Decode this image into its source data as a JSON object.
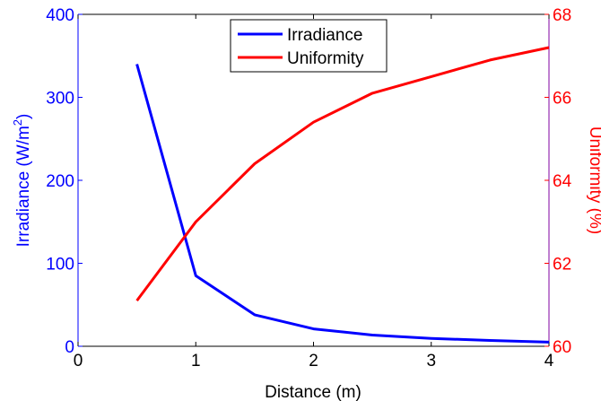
{
  "chart_data": {
    "type": "line",
    "title": "",
    "xlabel": "Distance (m)",
    "ylabel_left_main": "Irradiance (W/m",
    "ylabel_left_sup": "2",
    "ylabel_left_tail": ")",
    "ylabel_right": "Uniformity (%)",
    "xlim": [
      0,
      4
    ],
    "ylim_left": [
      0,
      400
    ],
    "ylim_right": [
      60,
      68
    ],
    "x_ticks": [
      "0",
      "1",
      "2",
      "3",
      "4"
    ],
    "y_left_ticks": [
      "0",
      "100",
      "200",
      "300",
      "400"
    ],
    "y_right_ticks": [
      "60",
      "62",
      "64",
      "66",
      "68"
    ],
    "grid": false,
    "legend_position": "top-center",
    "series": [
      {
        "name": "Irradiance",
        "axis": "left",
        "color": "#0000ff",
        "x": [
          0.5,
          1.0,
          1.5,
          2.0,
          2.5,
          3.0,
          3.5,
          4.0
        ],
        "y": [
          340,
          85,
          38,
          21,
          13.5,
          9.5,
          7,
          5
        ]
      },
      {
        "name": "Uniformity",
        "axis": "right",
        "color": "#ff0000",
        "x": [
          0.5,
          1.0,
          1.5,
          2.0,
          2.5,
          3.0,
          3.5,
          4.0
        ],
        "y": [
          61.1,
          63.0,
          64.4,
          65.4,
          66.1,
          66.5,
          66.9,
          67.2
        ]
      }
    ]
  }
}
